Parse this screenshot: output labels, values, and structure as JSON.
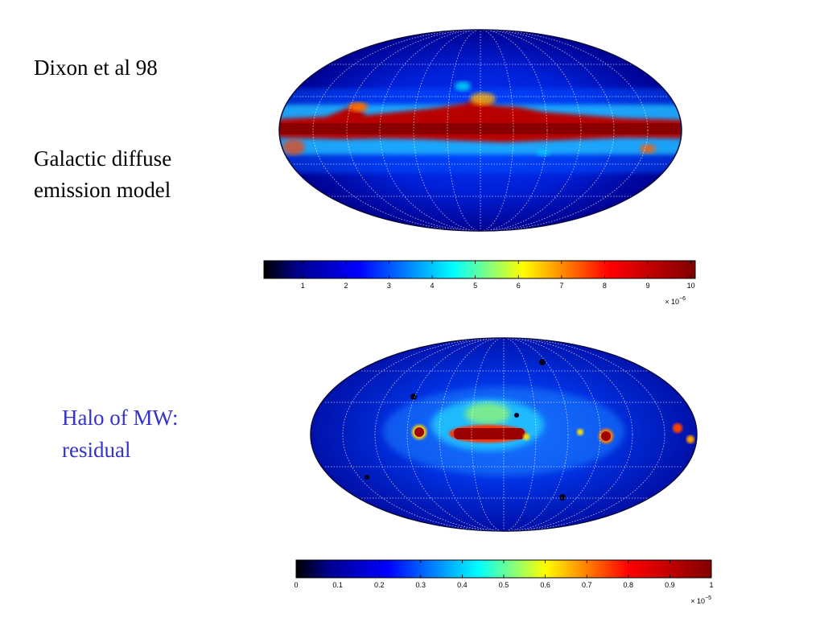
{
  "slide": {
    "top_caption": {
      "line1": "Dixon et al 98",
      "line2": "Galactic diffuse",
      "line3": "emission model"
    },
    "bottom_caption": {
      "line1": "Halo of MW:",
      "line2": "residual",
      "color": "#3333cc"
    }
  },
  "colorbar_top": {
    "ticks": [
      "1",
      "2",
      "3",
      "4",
      "5",
      "6",
      "7",
      "8",
      "9",
      "10"
    ],
    "tick_values": [
      1,
      2,
      3,
      4,
      5,
      6,
      7,
      8,
      9,
      10
    ],
    "range": [
      0.1,
      10.1
    ],
    "multiplier_base": "× 10",
    "multiplier_exp": "−6"
  },
  "colorbar_bottom": {
    "ticks": [
      "0",
      "0.1",
      "0.2",
      "0.3",
      "0.4",
      "0.5",
      "0.6",
      "0.7",
      "0.8",
      "0.9",
      "1"
    ],
    "tick_values": [
      0,
      0.1,
      0.2,
      0.3,
      0.4,
      0.5,
      0.6,
      0.7,
      0.8,
      0.9,
      1
    ],
    "range": [
      0,
      1
    ],
    "multiplier_base": "× 10",
    "multiplier_exp": "−5"
  },
  "colormap": [
    "#00008f",
    "#0000ff",
    "#00ffff",
    "#ffff00",
    "#ff0000",
    "#800000"
  ]
}
